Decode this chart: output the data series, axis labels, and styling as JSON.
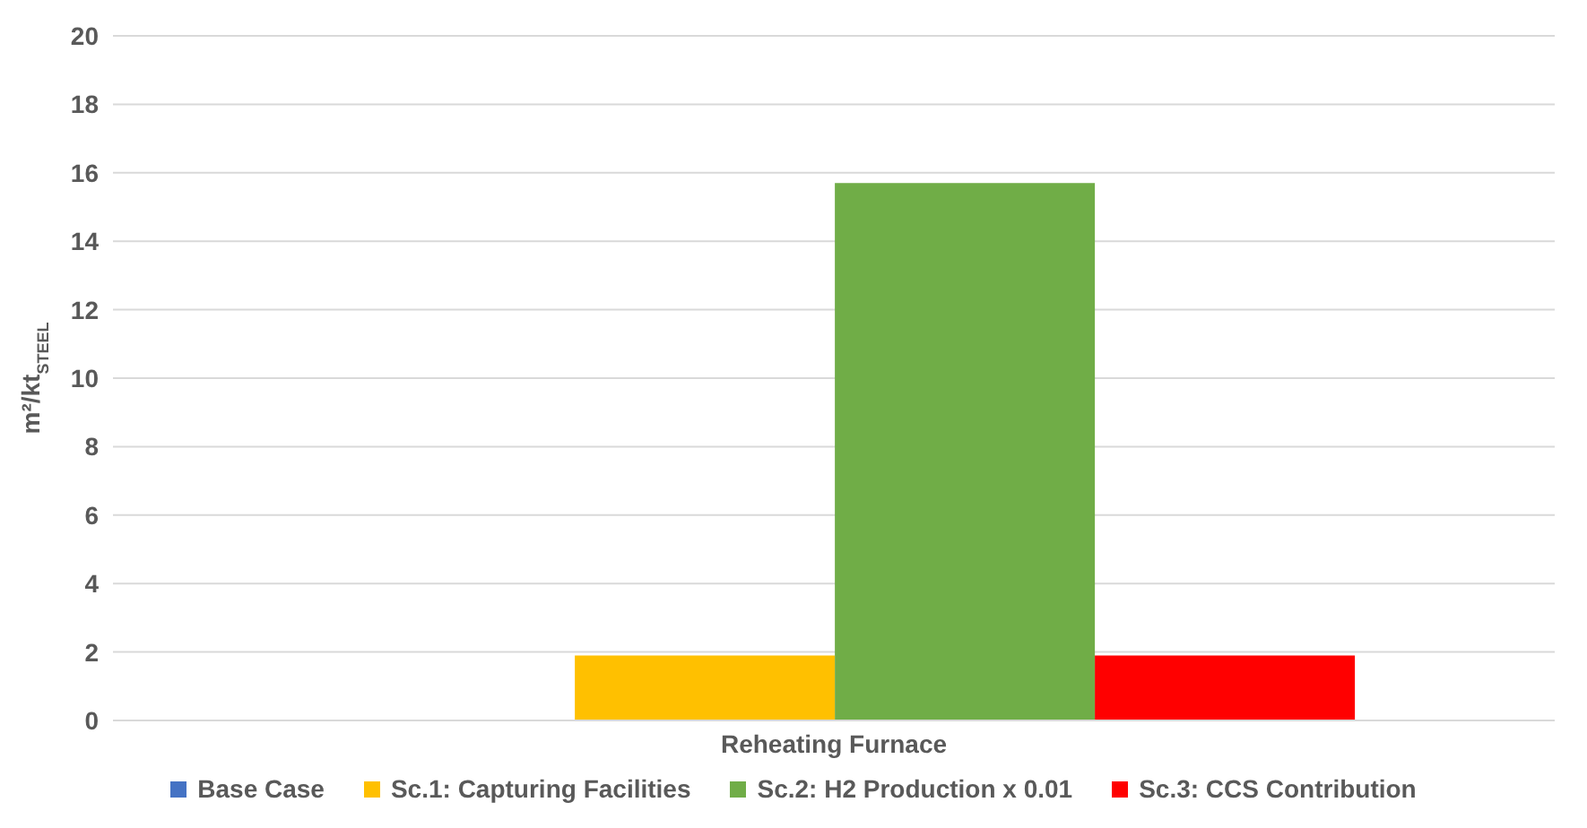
{
  "chart_data": {
    "type": "bar",
    "ylabel": "m²/kt$_{STEEL}$",
    "categories": [
      "Reheating Furnace"
    ],
    "series": [
      {
        "name": "Base Case",
        "color": "#4472c4",
        "values": [
          0
        ]
      },
      {
        "name": "Sc.1: Capturing Facilities",
        "color": "#ffc000",
        "values": [
          1.9
        ]
      },
      {
        "name": "Sc.2: H2 Production x 0.01",
        "color": "#70ad47",
        "values": [
          15.7
        ]
      },
      {
        "name": "Sc.3: CCS Contribution",
        "color": "#ff0000",
        "values": [
          1.9
        ]
      }
    ],
    "ylim": [
      0,
      20
    ],
    "yticks": [
      0,
      2,
      4,
      6,
      8,
      10,
      12,
      14,
      16,
      18,
      20
    ],
    "grid": "y",
    "legend": "bottom"
  }
}
